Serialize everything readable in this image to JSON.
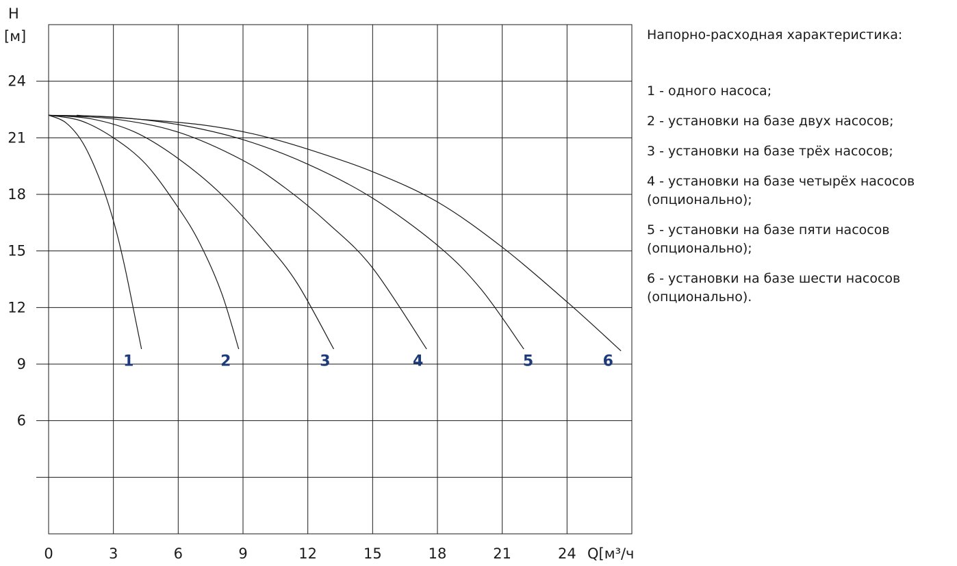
{
  "chart_data": {
    "type": "line",
    "ylabel_lines": [
      "H",
      "[м]"
    ],
    "xlabel": "Q[м³/ч]",
    "xlim": [
      0,
      27
    ],
    "ylim": [
      0,
      27
    ],
    "grid": true,
    "x_ticks": [
      {
        "value": 0,
        "label": "0"
      },
      {
        "value": 3,
        "label": "3"
      },
      {
        "value": 6,
        "label": "6"
      },
      {
        "value": 9,
        "label": "9"
      },
      {
        "value": 12,
        "label": "12"
      },
      {
        "value": 15,
        "label": "15"
      },
      {
        "value": 18,
        "label": "18"
      },
      {
        "value": 21,
        "label": "21"
      },
      {
        "value": 24,
        "label": "24"
      }
    ],
    "y_ticks": [
      {
        "value": 3,
        "label": ""
      },
      {
        "value": 6,
        "label": "6"
      },
      {
        "value": 9,
        "label": "9"
      },
      {
        "value": 12,
        "label": "12"
      },
      {
        "value": 15,
        "label": "15"
      },
      {
        "value": 18,
        "label": "18"
      },
      {
        "value": 21,
        "label": "21"
      },
      {
        "value": 24,
        "label": "24"
      }
    ],
    "series": [
      {
        "name": "1",
        "x": [
          0.0,
          0.8,
          1.6,
          2.4,
          3.0,
          3.5,
          4.0,
          4.3
        ],
        "y": [
          22.2,
          21.8,
          20.7,
          18.7,
          16.6,
          14.3,
          11.5,
          9.8
        ]
      },
      {
        "name": "2",
        "x": [
          0.0,
          1.5,
          3.0,
          4.5,
          6.0,
          7.0,
          8.0,
          8.8
        ],
        "y": [
          22.2,
          21.9,
          21.0,
          19.6,
          17.3,
          15.4,
          12.8,
          9.8
        ]
      },
      {
        "name": "3",
        "x": [
          0.0,
          2.0,
          4.0,
          6.0,
          8.0,
          10.0,
          11.5,
          13.2
        ],
        "y": [
          22.2,
          22.0,
          21.3,
          19.9,
          18.0,
          15.5,
          13.3,
          9.8
        ]
      },
      {
        "name": "4",
        "x": [
          0.0,
          3.0,
          6.0,
          9.0,
          11.0,
          13.0,
          15.0,
          17.5
        ],
        "y": [
          22.2,
          22.0,
          21.3,
          19.8,
          18.3,
          16.4,
          14.1,
          9.8
        ]
      },
      {
        "name": "5",
        "x": [
          0.0,
          3.0,
          6.0,
          9.0,
          12.0,
          15.0,
          18.0,
          20.0,
          22.0
        ],
        "y": [
          22.2,
          22.1,
          21.7,
          20.9,
          19.6,
          17.8,
          15.3,
          13.0,
          9.8
        ]
      },
      {
        "name": "6",
        "x": [
          1.3,
          4.0,
          7.0,
          9.5,
          12.0,
          15.0,
          18.0,
          21.0,
          24.0,
          26.5
        ],
        "y": [
          22.2,
          22.0,
          21.7,
          21.2,
          20.4,
          19.2,
          17.6,
          15.2,
          12.3,
          9.7
        ]
      }
    ],
    "curve_labels": [
      {
        "text": "1",
        "x": 3.7,
        "y": 9.2
      },
      {
        "text": "2",
        "x": 8.2,
        "y": 9.2
      },
      {
        "text": "3",
        "x": 12.8,
        "y": 9.2
      },
      {
        "text": "4",
        "x": 17.1,
        "y": 9.2
      },
      {
        "text": "5",
        "x": 22.2,
        "y": 9.2
      },
      {
        "text": "6",
        "x": 25.9,
        "y": 9.2
      }
    ],
    "colors": {
      "curve": "#1a1a1a",
      "grid": "#1a1a1a",
      "label": "#1d3b7a"
    }
  },
  "legend": {
    "title": "Напорно-расходная характеристика:",
    "items": [
      "1 - одного насоса;",
      "2 - установки на базе двух насосов;",
      "3 - установки на базе трёх насосов;",
      "4 - установки на базе четырёх насосов (опционально);",
      "5 - установки на базе пяти насосов (опционально);",
      "6 - установки на базе шести насосов (опционально)."
    ]
  }
}
